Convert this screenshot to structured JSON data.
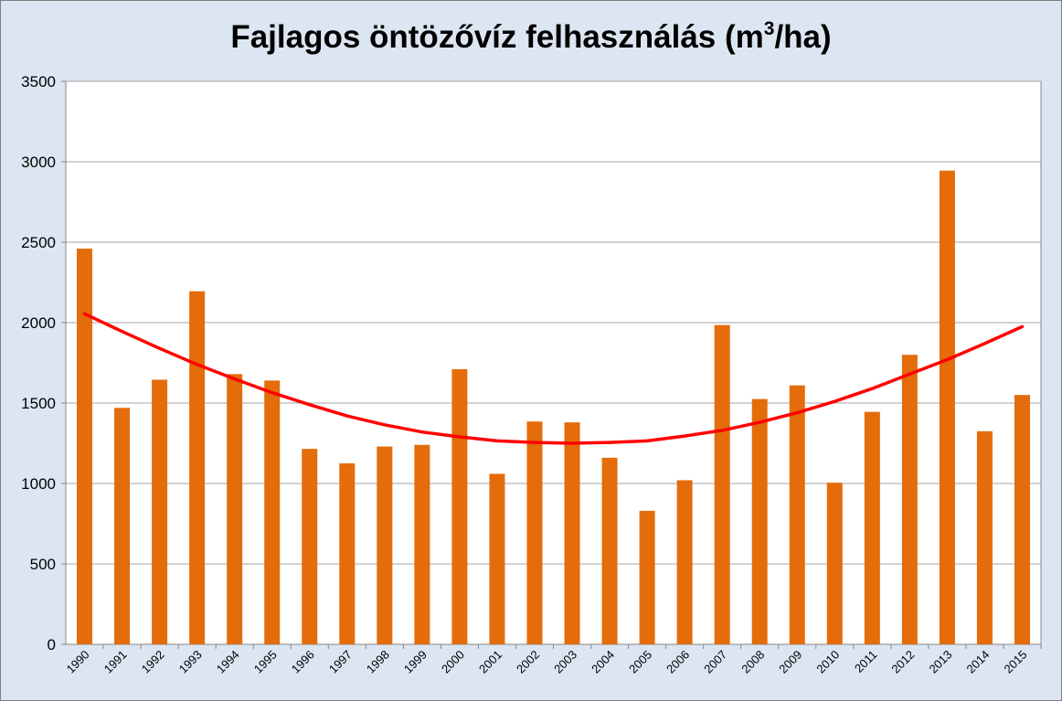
{
  "chart_data": {
    "type": "bar",
    "title": {
      "main": "Fajlagos öntözővíz felhasználás (m",
      "superscript": "3",
      "suffix": "/ha)"
    },
    "xlabel": "",
    "ylabel": "",
    "ylim": [
      0,
      3500
    ],
    "yticks": [
      "0",
      "500",
      "1000",
      "1500",
      "2000",
      "2500",
      "3000",
      "3500"
    ],
    "grid": true,
    "legend": "none",
    "categories": [
      "1990",
      "1991",
      "1992",
      "1993",
      "1994",
      "1995",
      "1996",
      "1997",
      "1998",
      "1999",
      "2000",
      "2001",
      "2002",
      "2003",
      "2004",
      "2005",
      "2006",
      "2007",
      "2008",
      "2009",
      "2010",
      "2011",
      "2012",
      "2013",
      "2014",
      "2015"
    ],
    "values": [
      2460,
      1470,
      1645,
      2195,
      1680,
      1640,
      1215,
      1125,
      1230,
      1240,
      1710,
      1060,
      1385,
      1380,
      1160,
      830,
      1020,
      1985,
      1525,
      1610,
      1005,
      1445,
      1800,
      2945,
      1325,
      1550
    ],
    "trendline": {
      "type": "polynomial",
      "order": 2,
      "values": [
        2055,
        1945,
        1840,
        1740,
        1650,
        1565,
        1490,
        1420,
        1365,
        1320,
        1290,
        1265,
        1255,
        1250,
        1255,
        1265,
        1295,
        1330,
        1380,
        1440,
        1510,
        1590,
        1680,
        1770,
        1870,
        1975
      ]
    },
    "colors": {
      "bars": "#e46c0a",
      "trendline": "#ff0000",
      "frame_background": "#dce6f2",
      "plot_background": "#ffffff",
      "gridline": "#a6a6a6"
    }
  }
}
